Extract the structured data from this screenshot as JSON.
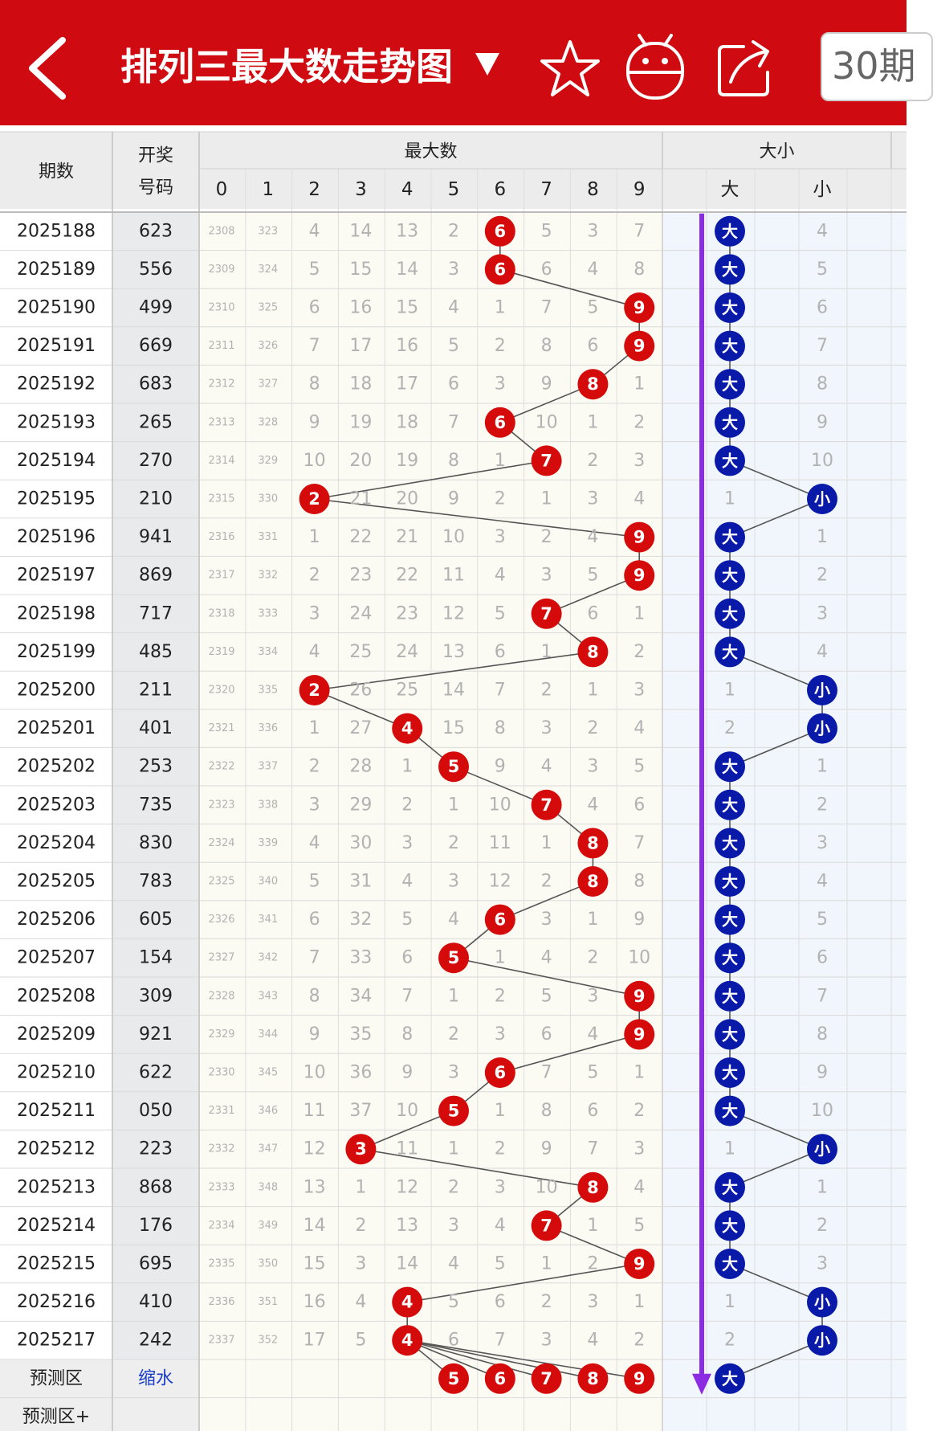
{
  "app": {
    "title": "排列三最大数走势图",
    "period_label": "30期"
  },
  "icons": {
    "back": "back-arrow-icon",
    "dropdown": "dropdown-triangle-icon",
    "favorite": "star-icon",
    "android": "android-robot-icon",
    "share": "share-icon"
  },
  "colors": {
    "brand": "#cf0a10",
    "ball_red": "#d50a0a",
    "ball_blue": "#0a1aa8",
    "trend_purple": "#8b2be2",
    "miss_text": "#b2b2b2",
    "line": "#555555"
  },
  "header": {
    "issue": "期数",
    "num_line1": "开奖",
    "num_line2": "号码",
    "max_group": "最大数",
    "size_group": "大小",
    "digits": [
      "0",
      "1",
      "2",
      "3",
      "4",
      "5",
      "6",
      "7",
      "8",
      "9"
    ],
    "big": "大",
    "small": "小"
  },
  "rows": [
    {
      "issue": "2025188",
      "number": "623",
      "miss": [
        "2308",
        "323",
        "4",
        "14",
        "13",
        "2",
        "6",
        "5",
        "3",
        "7"
      ],
      "max": 6,
      "size": "大",
      "size_miss": [
        "大",
        "4"
      ]
    },
    {
      "issue": "2025189",
      "number": "556",
      "miss": [
        "2309",
        "324",
        "5",
        "15",
        "14",
        "3",
        "6",
        "6",
        "4",
        "8"
      ],
      "max": 6,
      "size": "大",
      "size_miss": [
        "大",
        "5"
      ]
    },
    {
      "issue": "2025190",
      "number": "499",
      "miss": [
        "2310",
        "325",
        "6",
        "16",
        "15",
        "4",
        "1",
        "7",
        "5",
        "9"
      ],
      "max": 9,
      "size": "大",
      "size_miss": [
        "大",
        "6"
      ]
    },
    {
      "issue": "2025191",
      "number": "669",
      "miss": [
        "2311",
        "326",
        "7",
        "17",
        "16",
        "5",
        "2",
        "8",
        "6",
        "9"
      ],
      "max": 9,
      "size": "大",
      "size_miss": [
        "大",
        "7"
      ]
    },
    {
      "issue": "2025192",
      "number": "683",
      "miss": [
        "2312",
        "327",
        "8",
        "18",
        "17",
        "6",
        "3",
        "9",
        "8",
        "1"
      ],
      "max": 8,
      "size": "大",
      "size_miss": [
        "大",
        "8"
      ]
    },
    {
      "issue": "2025193",
      "number": "265",
      "miss": [
        "2313",
        "328",
        "9",
        "19",
        "18",
        "7",
        "6",
        "10",
        "1",
        "2"
      ],
      "max": 6,
      "size": "大",
      "size_miss": [
        "大",
        "9"
      ]
    },
    {
      "issue": "2025194",
      "number": "270",
      "miss": [
        "2314",
        "329",
        "10",
        "20",
        "19",
        "8",
        "1",
        "7",
        "2",
        "3"
      ],
      "max": 7,
      "size": "大",
      "size_miss": [
        "大",
        "10"
      ]
    },
    {
      "issue": "2025195",
      "number": "210",
      "miss": [
        "2315",
        "330",
        "2",
        "21",
        "20",
        "9",
        "2",
        "1",
        "3",
        "4"
      ],
      "max": 2,
      "size": "小",
      "size_miss": [
        "1",
        "小"
      ]
    },
    {
      "issue": "2025196",
      "number": "941",
      "miss": [
        "2316",
        "331",
        "1",
        "22",
        "21",
        "10",
        "3",
        "2",
        "4",
        "9"
      ],
      "max": 9,
      "size": "大",
      "size_miss": [
        "大",
        "1"
      ]
    },
    {
      "issue": "2025197",
      "number": "869",
      "miss": [
        "2317",
        "332",
        "2",
        "23",
        "22",
        "11",
        "4",
        "3",
        "5",
        "9"
      ],
      "max": 9,
      "size": "大",
      "size_miss": [
        "大",
        "2"
      ]
    },
    {
      "issue": "2025198",
      "number": "717",
      "miss": [
        "2318",
        "333",
        "3",
        "24",
        "23",
        "12",
        "5",
        "7",
        "6",
        "1"
      ],
      "max": 7,
      "size": "大",
      "size_miss": [
        "大",
        "3"
      ]
    },
    {
      "issue": "2025199",
      "number": "485",
      "miss": [
        "2319",
        "334",
        "4",
        "25",
        "24",
        "13",
        "6",
        "1",
        "8",
        "2"
      ],
      "max": 8,
      "size": "大",
      "size_miss": [
        "大",
        "4"
      ]
    },
    {
      "issue": "2025200",
      "number": "211",
      "miss": [
        "2320",
        "335",
        "2",
        "26",
        "25",
        "14",
        "7",
        "2",
        "1",
        "3"
      ],
      "max": 2,
      "size": "小",
      "size_miss": [
        "1",
        "小"
      ]
    },
    {
      "issue": "2025201",
      "number": "401",
      "miss": [
        "2321",
        "336",
        "1",
        "27",
        "4",
        "15",
        "8",
        "3",
        "2",
        "4"
      ],
      "max": 4,
      "size": "小",
      "size_miss": [
        "2",
        "小"
      ]
    },
    {
      "issue": "2025202",
      "number": "253",
      "miss": [
        "2322",
        "337",
        "2",
        "28",
        "1",
        "5",
        "9",
        "4",
        "3",
        "5"
      ],
      "max": 5,
      "size": "大",
      "size_miss": [
        "大",
        "1"
      ]
    },
    {
      "issue": "2025203",
      "number": "735",
      "miss": [
        "2323",
        "338",
        "3",
        "29",
        "2",
        "1",
        "10",
        "7",
        "4",
        "6"
      ],
      "max": 7,
      "size": "大",
      "size_miss": [
        "大",
        "2"
      ]
    },
    {
      "issue": "2025204",
      "number": "830",
      "miss": [
        "2324",
        "339",
        "4",
        "30",
        "3",
        "2",
        "11",
        "1",
        "8",
        "7"
      ],
      "max": 8,
      "size": "大",
      "size_miss": [
        "大",
        "3"
      ]
    },
    {
      "issue": "2025205",
      "number": "783",
      "miss": [
        "2325",
        "340",
        "5",
        "31",
        "4",
        "3",
        "12",
        "2",
        "8",
        "8"
      ],
      "max": 8,
      "size": "大",
      "size_miss": [
        "大",
        "4"
      ]
    },
    {
      "issue": "2025206",
      "number": "605",
      "miss": [
        "2326",
        "341",
        "6",
        "32",
        "5",
        "4",
        "6",
        "3",
        "1",
        "9"
      ],
      "max": 6,
      "size": "大",
      "size_miss": [
        "大",
        "5"
      ]
    },
    {
      "issue": "2025207",
      "number": "154",
      "miss": [
        "2327",
        "342",
        "7",
        "33",
        "6",
        "5",
        "1",
        "4",
        "2",
        "10"
      ],
      "max": 5,
      "size": "大",
      "size_miss": [
        "大",
        "6"
      ]
    },
    {
      "issue": "2025208",
      "number": "309",
      "miss": [
        "2328",
        "343",
        "8",
        "34",
        "7",
        "1",
        "2",
        "5",
        "3",
        "9"
      ],
      "max": 9,
      "size": "大",
      "size_miss": [
        "大",
        "7"
      ]
    },
    {
      "issue": "2025209",
      "number": "921",
      "miss": [
        "2329",
        "344",
        "9",
        "35",
        "8",
        "2",
        "3",
        "6",
        "4",
        "9"
      ],
      "max": 9,
      "size": "大",
      "size_miss": [
        "大",
        "8"
      ]
    },
    {
      "issue": "2025210",
      "number": "622",
      "miss": [
        "2330",
        "345",
        "10",
        "36",
        "9",
        "3",
        "6",
        "7",
        "5",
        "1"
      ],
      "max": 6,
      "size": "大",
      "size_miss": [
        "大",
        "9"
      ]
    },
    {
      "issue": "2025211",
      "number": "050",
      "miss": [
        "2331",
        "346",
        "11",
        "37",
        "10",
        "5",
        "1",
        "8",
        "6",
        "2"
      ],
      "max": 5,
      "size": "大",
      "size_miss": [
        "大",
        "10"
      ]
    },
    {
      "issue": "2025212",
      "number": "223",
      "miss": [
        "2332",
        "347",
        "12",
        "3",
        "11",
        "1",
        "2",
        "9",
        "7",
        "3"
      ],
      "max": 3,
      "size": "小",
      "size_miss": [
        "1",
        "小"
      ]
    },
    {
      "issue": "2025213",
      "number": "868",
      "miss": [
        "2333",
        "348",
        "13",
        "1",
        "12",
        "2",
        "3",
        "10",
        "8",
        "4"
      ],
      "max": 8,
      "size": "大",
      "size_miss": [
        "大",
        "1"
      ]
    },
    {
      "issue": "2025214",
      "number": "176",
      "miss": [
        "2334",
        "349",
        "14",
        "2",
        "13",
        "3",
        "4",
        "7",
        "1",
        "5"
      ],
      "max": 7,
      "size": "大",
      "size_miss": [
        "大",
        "2"
      ]
    },
    {
      "issue": "2025215",
      "number": "695",
      "miss": [
        "2335",
        "350",
        "15",
        "3",
        "14",
        "4",
        "5",
        "1",
        "2",
        "9"
      ],
      "max": 9,
      "size": "大",
      "size_miss": [
        "大",
        "3"
      ]
    },
    {
      "issue": "2025216",
      "number": "410",
      "miss": [
        "2336",
        "351",
        "16",
        "4",
        "4",
        "5",
        "6",
        "2",
        "3",
        "1"
      ],
      "max": 4,
      "size": "小",
      "size_miss": [
        "1",
        "小"
      ]
    },
    {
      "issue": "2025217",
      "number": "242",
      "miss": [
        "2337",
        "352",
        "17",
        "5",
        "4",
        "6",
        "7",
        "3",
        "4",
        "2"
      ],
      "max": 4,
      "size": "小",
      "size_miss": [
        "2",
        "小"
      ]
    }
  ],
  "predict": {
    "label": "预测区",
    "link": "缩水",
    "balls": [
      "5",
      "6",
      "7",
      "8",
      "9"
    ],
    "size_ball": "大",
    "label_plus": "预测区+"
  }
}
